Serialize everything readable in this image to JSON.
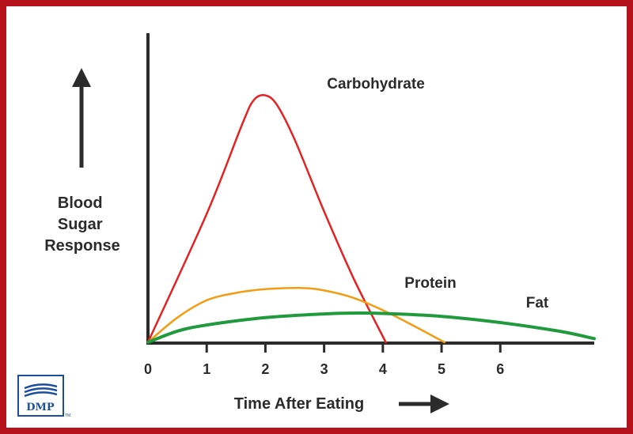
{
  "chart_data": {
    "type": "line",
    "title": "",
    "xlabel": "Time After Eating",
    "ylabel": "Blood Sugar Response",
    "xlim": [
      0,
      7.6
    ],
    "ylim": [
      0,
      1.05
    ],
    "x_ticks": [
      "0",
      "1",
      "2",
      "3",
      "4",
      "5",
      "6"
    ],
    "grid": false,
    "series": [
      {
        "name": "Carbohydrate",
        "color": "#e32222",
        "x": [
          0,
          1.0,
          1.6,
          1.8,
          2.0,
          2.2,
          2.5,
          3.0,
          3.5,
          4.05
        ],
        "y": [
          0,
          0.52,
          0.88,
          0.98,
          1.0,
          0.96,
          0.82,
          0.53,
          0.26,
          0
        ]
      },
      {
        "name": "Protein",
        "color": "#f39c12",
        "x": [
          0,
          0.5,
          1.0,
          1.5,
          2.0,
          2.6,
          3.0,
          3.5,
          4.0,
          4.5,
          5.05
        ],
        "y": [
          0,
          0.1,
          0.17,
          0.2,
          0.215,
          0.22,
          0.21,
          0.18,
          0.13,
          0.07,
          0
        ]
      },
      {
        "name": "Fat",
        "color": "#1f9a3c",
        "x": [
          0,
          0.5,
          1.0,
          2.0,
          3.0,
          3.5,
          4.0,
          5.0,
          6.0,
          7.0,
          7.6
        ],
        "y": [
          0,
          0.045,
          0.07,
          0.1,
          0.115,
          0.118,
          0.117,
          0.105,
          0.08,
          0.045,
          0.015
        ]
      }
    ]
  },
  "logo": {
    "text": "DMP",
    "tm": "TM",
    "color": "#1b4f9c"
  },
  "colors": {
    "border": "#b5121b",
    "axis": "#2b2b2b"
  }
}
